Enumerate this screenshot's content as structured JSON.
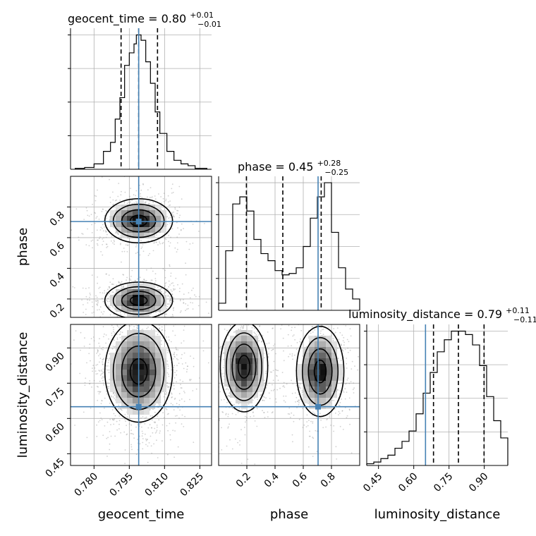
{
  "chart_data": {
    "type": "corner",
    "parameters": [
      "geocent_time",
      "phase",
      "luminosity_distance"
    ],
    "colors": {
      "truth": "#4682b4",
      "hist": "#000000",
      "grid": "#b0b0b0",
      "points": "#999999"
    },
    "grid": true,
    "panels": [
      {
        "kind": "histogram",
        "parameter": "geocent_time",
        "title": {
          "prefix": "geocent_time = 0.80",
          "upper": "+0.01",
          "lower": "−0.01"
        },
        "x_range": [
          0.77,
          0.83
        ],
        "bin_edges": [
          0.772,
          0.776,
          0.78,
          0.784,
          0.787,
          0.789,
          0.791,
          0.793,
          0.795,
          0.797,
          0.798,
          0.8,
          0.802,
          0.804,
          0.806,
          0.808,
          0.811,
          0.814,
          0.817,
          0.82,
          0.823,
          0.825,
          0.828
        ],
        "counts": [
          0.5,
          1,
          3,
          10,
          15,
          28,
          40,
          58,
          65,
          70,
          75,
          72,
          60,
          48,
          32,
          20,
          10,
          5,
          3,
          2,
          0.5,
          0.5
        ],
        "quantiles": [
          0.7915,
          0.799,
          0.807
        ],
        "truth": 0.799
      },
      {
        "kind": "histogram",
        "parameter": "phase",
        "title": {
          "prefix": "phase = 0.45",
          "upper": "+0.28",
          "lower": "−0.25"
        },
        "x_range": [
          0.0,
          1.0
        ],
        "bin_edges": [
          0.0,
          0.05,
          0.1,
          0.15,
          0.2,
          0.25,
          0.3,
          0.35,
          0.4,
          0.45,
          0.5,
          0.55,
          0.6,
          0.65,
          0.7,
          0.75,
          0.8,
          0.85,
          0.9,
          0.95,
          1.0
        ],
        "counts": [
          5,
          42,
          75,
          80,
          70,
          50,
          40,
          35,
          28,
          25,
          26,
          30,
          45,
          65,
          80,
          90,
          55,
          30,
          15,
          8
        ],
        "quantiles": [
          0.197,
          0.455,
          0.727
        ],
        "truth": 0.705
      },
      {
        "kind": "histogram",
        "parameter": "luminosity_distance",
        "title": {
          "prefix": "luminosity_distance = 0.79",
          "upper": "+0.11",
          "lower": "−0.11"
        },
        "x_range": [
          0.4,
          1.0
        ],
        "bin_edges": [
          0.4,
          0.43,
          0.46,
          0.49,
          0.52,
          0.55,
          0.58,
          0.61,
          0.64,
          0.67,
          0.7,
          0.73,
          0.76,
          0.79,
          0.82,
          0.85,
          0.88,
          0.91,
          0.94,
          0.97,
          1.0
        ],
        "counts": [
          1,
          2,
          4,
          6,
          10,
          14,
          20,
          30,
          42,
          54,
          66,
          73,
          78,
          78,
          76,
          70,
          58,
          40,
          26,
          16
        ],
        "quantiles": [
          0.684,
          0.79,
          0.899
        ],
        "truth": 0.65
      },
      {
        "kind": "2d",
        "x_parameter": "geocent_time",
        "y_parameter": "phase",
        "x_range": [
          0.77,
          0.83
        ],
        "y_range": [
          0.08,
          1.0
        ],
        "truth": [
          0.799,
          0.705
        ],
        "modes": [
          {
            "x": 0.799,
            "y": 0.71,
            "sx": 0.006,
            "sy": 0.06,
            "w": 0.5
          },
          {
            "x": 0.799,
            "y": 0.19,
            "sx": 0.006,
            "sy": 0.05,
            "w": 0.5
          }
        ]
      },
      {
        "kind": "2d",
        "x_parameter": "geocent_time",
        "y_parameter": "luminosity_distance",
        "x_range": [
          0.77,
          0.83
        ],
        "y_range": [
          0.4,
          1.0
        ],
        "truth": [
          0.799,
          0.65
        ],
        "modes": [
          {
            "x": 0.799,
            "y": 0.8,
            "sx": 0.006,
            "sy": 0.09,
            "w": 1.0
          }
        ]
      },
      {
        "kind": "2d",
        "x_parameter": "phase",
        "y_parameter": "luminosity_distance",
        "x_range": [
          0.0,
          1.0
        ],
        "y_range": [
          0.4,
          1.0
        ],
        "truth": [
          0.705,
          0.65
        ],
        "modes": [
          {
            "x": 0.18,
            "y": 0.82,
            "sx": 0.07,
            "sy": 0.08,
            "w": 0.5
          },
          {
            "x": 0.72,
            "y": 0.8,
            "sx": 0.07,
            "sy": 0.08,
            "w": 0.5
          }
        ]
      }
    ],
    "ticks": {
      "geocent_time": [
        "0.780",
        "0.795",
        "0.810",
        "0.825"
      ],
      "phase_x": [
        "0.2",
        "0.4",
        "0.6",
        "0.8"
      ],
      "phase_y": [
        "0.2",
        "0.4",
        "0.6",
        "0.8"
      ],
      "luminosity_distance_x": [
        "0.45",
        "0.60",
        "0.75",
        "0.90"
      ],
      "luminosity_distance_y": [
        "0.45",
        "0.60",
        "0.75",
        "0.90"
      ]
    },
    "xlabels": [
      "geocent_time",
      "phase",
      "luminosity_distance"
    ],
    "ylabels": [
      "phase",
      "luminosity_distance"
    ]
  }
}
